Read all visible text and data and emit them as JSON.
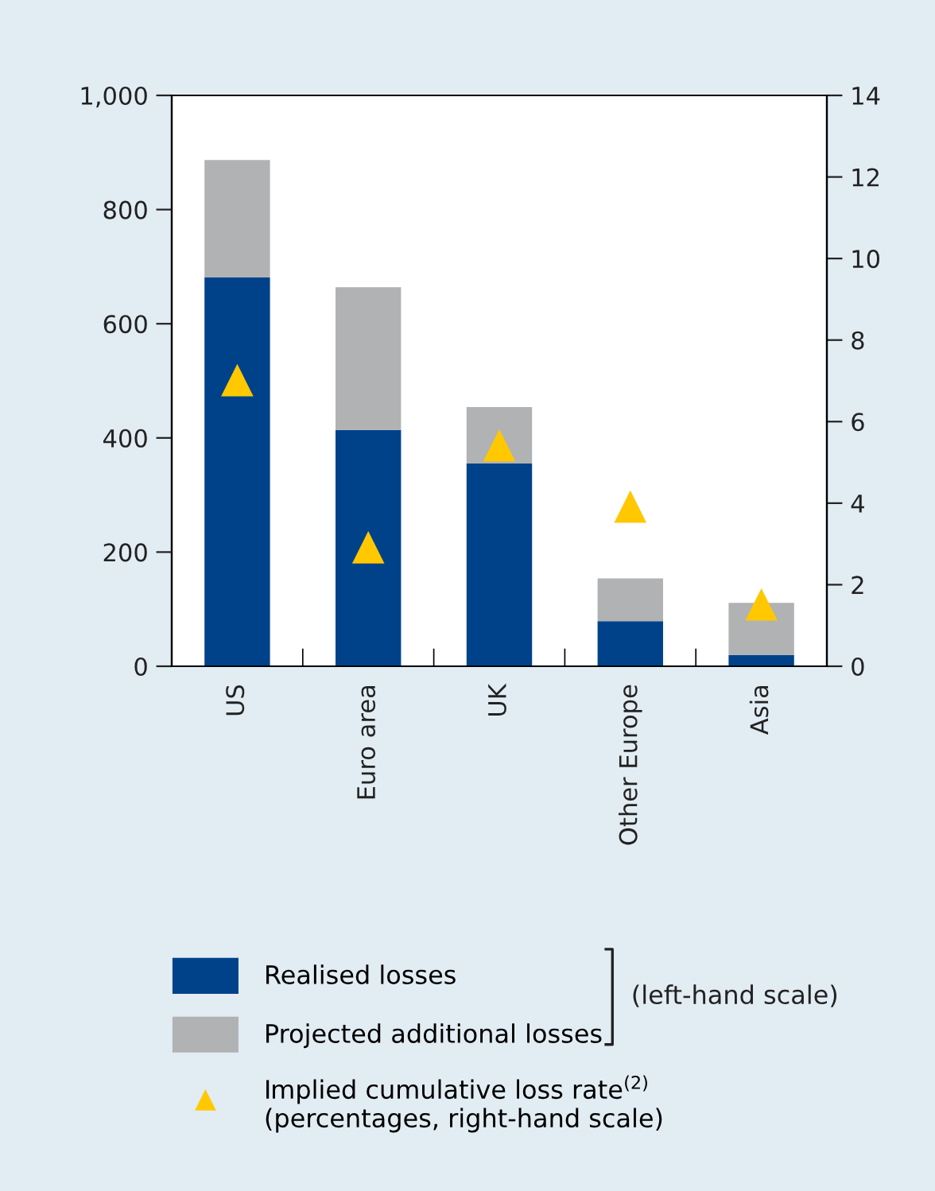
{
  "chart_data": {
    "type": "bar",
    "stacked": true,
    "categories": [
      "US",
      "Euro area",
      "UK",
      "Other Europe",
      "Asia"
    ],
    "series": [
      {
        "name": "Realised losses",
        "color": "#00428a",
        "values": [
          681,
          414,
          355,
          79,
          20
        ]
      },
      {
        "name": "Projected additional losses",
        "color": "#b1b2b4",
        "values": [
          206,
          250,
          99,
          75,
          91
        ]
      },
      {
        "name": "Implied cumulative loss rate$^{(2)}$\n(percentages, right-hand scale)",
        "type": "scatter",
        "axis": "y2",
        "color": "#ffc800",
        "marker": "triangle",
        "values": [
          7.0,
          2.9,
          5.4,
          3.9,
          1.5
        ]
      }
    ],
    "ylim": [
      0,
      1000
    ],
    "yticks": [
      0,
      200,
      400,
      600,
      800,
      {
        "value": 1000,
        "label": "1,000"
      }
    ],
    "y2lim": [
      0,
      14
    ],
    "y2ticks": [
      0,
      2,
      4,
      6,
      8,
      10,
      12,
      14
    ],
    "legend": "bottom",
    "grid": false,
    "annotations": [
      "(left-hand scale)"
    ]
  }
}
